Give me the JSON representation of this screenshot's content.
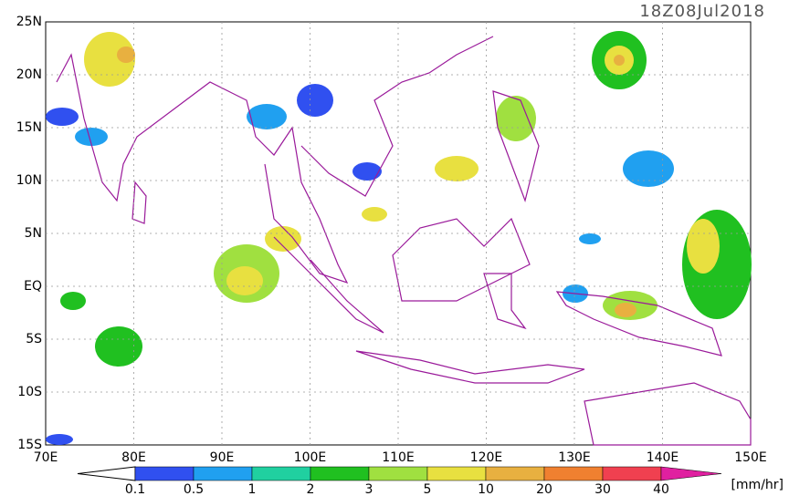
{
  "timestamp": "18Z08Jul2018",
  "lat_labels": [
    "25N",
    "20N",
    "15N",
    "10N",
    "5N",
    "EQ",
    "5S",
    "10S",
    "15S"
  ],
  "lon_labels": [
    "70E",
    "80E",
    "90E",
    "100E",
    "110E",
    "120E",
    "130E",
    "140E",
    "150E"
  ],
  "colorbar": {
    "labels": [
      "0.1",
      "0.5",
      "1",
      "2",
      "3",
      "5",
      "10",
      "20",
      "30",
      "40"
    ],
    "unit": "[mm/hr]"
  }
}
